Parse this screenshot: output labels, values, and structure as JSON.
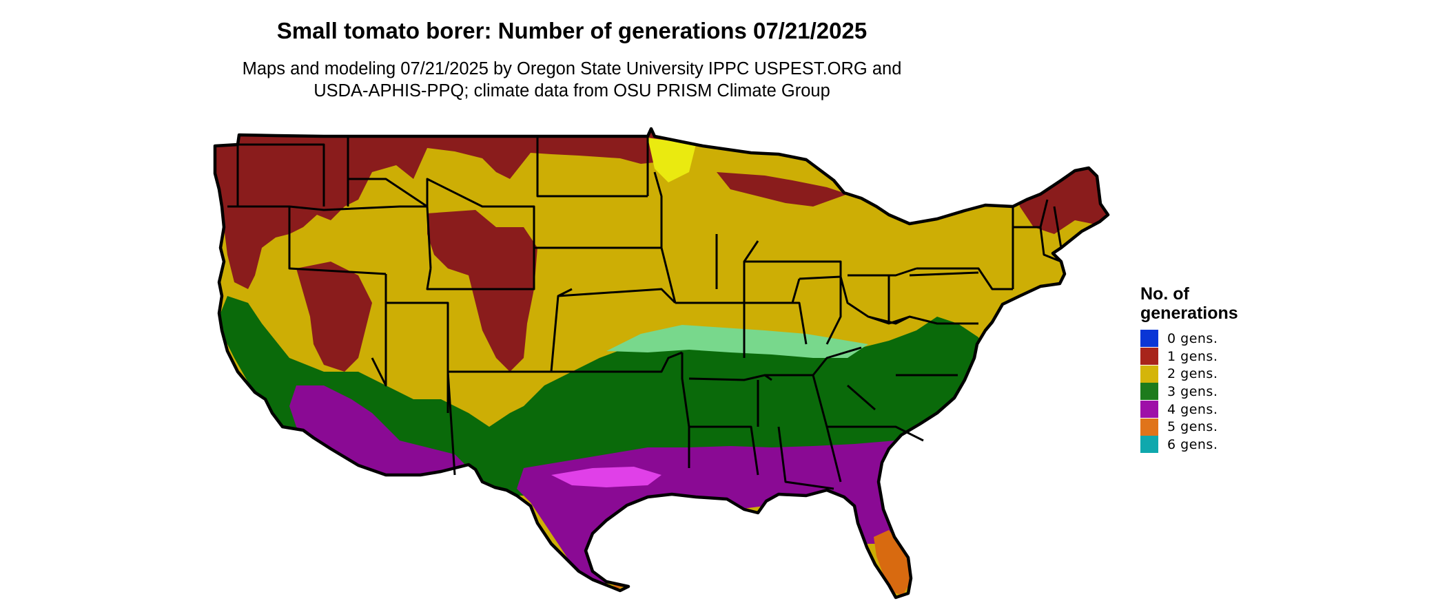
{
  "title": "Small tomato borer: Number of generations 07/21/2025",
  "subtitle_lines": [
    "Maps and modeling 07/21/2025 by Oregon State University IPPC USPEST.ORG and",
    "USDA-APHIS-PPQ; climate data from OSU PRISM Climate Group"
  ],
  "legend": {
    "title_lines": [
      "No. of",
      "generations"
    ],
    "items": [
      {
        "label": "0 gens.",
        "color": "#0a36d6"
      },
      {
        "label": "1 gens.",
        "color": "#a8251b"
      },
      {
        "label": "2 gens.",
        "color": "#d4b50a"
      },
      {
        "label": "3 gens.",
        "color": "#1d7b1c"
      },
      {
        "label": "4 gens.",
        "color": "#9e10a8"
      },
      {
        "label": "5 gens.",
        "color": "#e0741a"
      },
      {
        "label": "6 gens.",
        "color": "#0fa8ad"
      }
    ]
  },
  "map_colors": {
    "gen1": "#8a1c1c",
    "gen2": "#cdae05",
    "gen2_light": "#eaea10",
    "gen3": "#0a6a0a",
    "gen3_light": "#78d88c",
    "gen4": "#8a0a94",
    "gen4_light": "#e040e8",
    "gen5": "#d86a10",
    "border": "#000000"
  }
}
